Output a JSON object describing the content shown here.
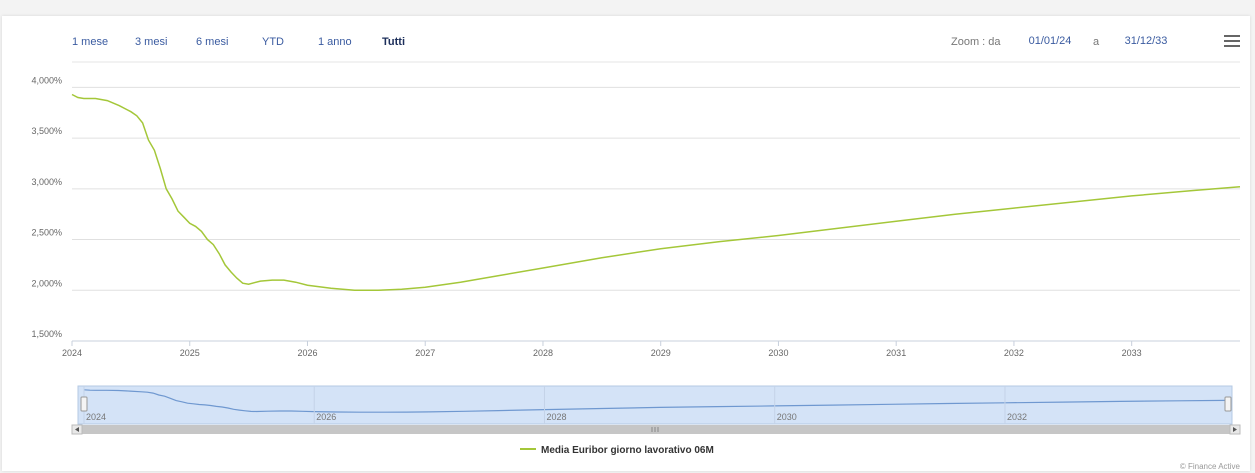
{
  "toolbar": {
    "ranges": [
      "1 mese",
      "3 mesi",
      "6 mesi",
      "YTD",
      "1 anno",
      "Tutti"
    ],
    "active_range": "Tutti",
    "zoom_label": "Zoom : da",
    "zoom_from": "01/01/24",
    "zoom_sep": "a",
    "zoom_to": "31/12/33",
    "menu_icon": "hamburger-menu-icon"
  },
  "chart_data": {
    "type": "line",
    "title": "",
    "xlabel": "",
    "ylabel": "",
    "xlim": [
      2024.0,
      2033.92
    ],
    "ylim": [
      1.5,
      4.25
    ],
    "y_ticks": [
      1.5,
      2.0,
      2.5,
      3.0,
      3.5,
      4.0
    ],
    "y_tick_labels": [
      "1,500%",
      "2,000%",
      "2,500%",
      "3,000%",
      "3,500%",
      "4,000%"
    ],
    "x_ticks": [
      2024,
      2025,
      2026,
      2027,
      2028,
      2029,
      2030,
      2031,
      2032,
      2033
    ],
    "x_tick_labels": [
      "2024",
      "2025",
      "2026",
      "2027",
      "2028",
      "2029",
      "2030",
      "2031",
      "2032",
      "2033"
    ],
    "grid": true,
    "legend_position": "bottom-center",
    "series": [
      {
        "name": "Media Euribor giorno lavorativo 06M",
        "color": "#a4c739",
        "x": [
          2024.0,
          2024.05,
          2024.1,
          2024.2,
          2024.3,
          2024.4,
          2024.5,
          2024.55,
          2024.6,
          2024.65,
          2024.7,
          2024.75,
          2024.8,
          2024.85,
          2024.9,
          2024.95,
          2025.0,
          2025.05,
          2025.1,
          2025.15,
          2025.2,
          2025.25,
          2025.3,
          2025.35,
          2025.4,
          2025.45,
          2025.5,
          2025.6,
          2025.7,
          2025.8,
          2025.9,
          2026.0,
          2026.2,
          2026.4,
          2026.6,
          2026.8,
          2027.0,
          2027.3,
          2027.6,
          2028.0,
          2028.5,
          2029.0,
          2029.5,
          2030.0,
          2030.5,
          2031.0,
          2031.5,
          2032.0,
          2032.5,
          2033.0,
          2033.5,
          2033.92
        ],
        "values": [
          3.93,
          3.9,
          3.89,
          3.89,
          3.87,
          3.82,
          3.76,
          3.72,
          3.65,
          3.48,
          3.38,
          3.2,
          3.0,
          2.9,
          2.78,
          2.72,
          2.66,
          2.63,
          2.58,
          2.5,
          2.45,
          2.36,
          2.25,
          2.18,
          2.12,
          2.07,
          2.06,
          2.09,
          2.1,
          2.1,
          2.08,
          2.05,
          2.02,
          2.0,
          2.0,
          2.01,
          2.03,
          2.08,
          2.14,
          2.22,
          2.32,
          2.41,
          2.48,
          2.54,
          2.61,
          2.68,
          2.75,
          2.81,
          2.87,
          2.93,
          2.98,
          3.02
        ]
      }
    ],
    "navigator": {
      "x_tick_labels": [
        "2024",
        "2026",
        "2028",
        "2030",
        "2032"
      ]
    }
  },
  "credit": "© Finance Active"
}
